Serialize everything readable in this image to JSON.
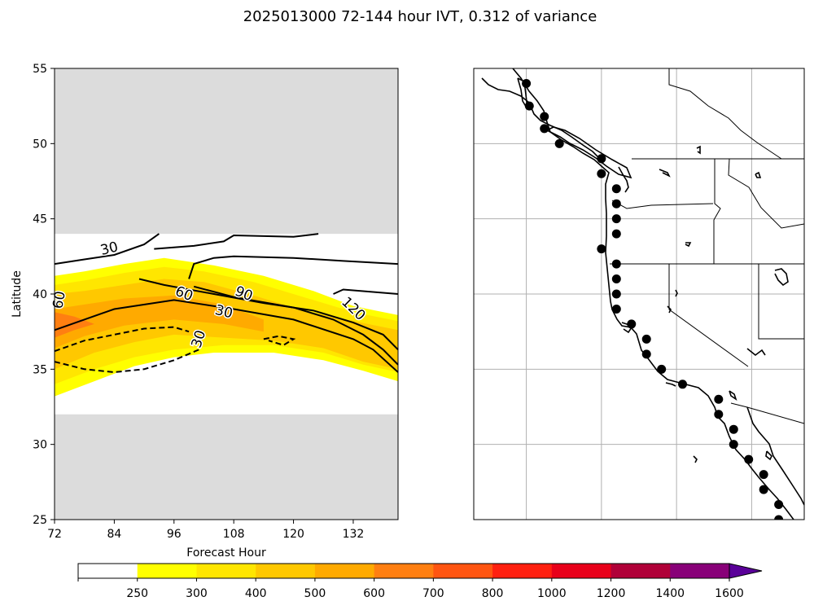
{
  "title": "2025013000 72-144 hour IVT, 0.312 of variance",
  "chart_data": [
    {
      "type": "contour",
      "xlabel": "Forecast Hour",
      "ylabel": "Latitude",
      "xlim": [
        72,
        141
      ],
      "ylim": [
        25,
        55
      ],
      "xticks": [
        72,
        84,
        96,
        108,
        120,
        132
      ],
      "yticks": [
        25,
        30,
        35,
        40,
        45,
        50,
        55
      ],
      "masked_bands": [
        [
          25,
          32
        ],
        [
          44,
          55
        ]
      ],
      "filled_contours": [
        {
          "level": "250-300",
          "color": "#ffff00",
          "outline": [
            [
              72,
              33.2
            ],
            [
              80,
              34.2
            ],
            [
              88,
              35.2
            ],
            [
              96,
              35.8
            ],
            [
              104,
              36.1
            ],
            [
              116,
              36.1
            ],
            [
              126,
              35.6
            ],
            [
              134,
              34.9
            ],
            [
              141,
              34.2
            ],
            [
              141,
              38.6
            ],
            [
              132,
              39.2
            ],
            [
              124,
              40.2
            ],
            [
              114,
              41.2
            ],
            [
              104,
              41.9
            ],
            [
              94,
              42.4
            ],
            [
              86,
              42.0
            ],
            [
              78,
              41.5
            ],
            [
              72,
              41.2
            ]
          ]
        },
        {
          "level": "300-400",
          "color": "#ffe600",
          "outline": [
            [
              72,
              34.0
            ],
            [
              80,
              35.0
            ],
            [
              88,
              35.8
            ],
            [
              96,
              36.3
            ],
            [
              106,
              36.6
            ],
            [
              116,
              36.6
            ],
            [
              126,
              36.1
            ],
            [
              134,
              35.3
            ],
            [
              141,
              34.8
            ],
            [
              141,
              38.2
            ],
            [
              132,
              38.8
            ],
            [
              122,
              39.8
            ],
            [
              112,
              40.8
            ],
            [
              102,
              41.5
            ],
            [
              94,
              41.8
            ],
            [
              86,
              41.4
            ],
            [
              78,
              40.9
            ],
            [
              72,
              40.6
            ]
          ]
        },
        {
          "level": "400-500",
          "color": "#ffc800",
          "outline": [
            [
              72,
              35.0
            ],
            [
              80,
              36.1
            ],
            [
              88,
              36.8
            ],
            [
              96,
              37.3
            ],
            [
              106,
              37.1
            ],
            [
              116,
              36.9
            ],
            [
              126,
              36.4
            ],
            [
              134,
              35.5
            ],
            [
              141,
              35.0
            ],
            [
              141,
              37.6
            ],
            [
              132,
              38.2
            ],
            [
              122,
              38.9
            ],
            [
              112,
              39.9
            ],
            [
              102,
              40.8
            ],
            [
              94,
              41.0
            ],
            [
              86,
              40.6
            ],
            [
              78,
              40.2
            ],
            [
              72,
              40.0
            ]
          ]
        },
        {
          "level": "500-600",
          "color": "#ffaa00",
          "outline": [
            [
              72,
              36.4
            ],
            [
              78,
              37.2
            ],
            [
              86,
              37.9
            ],
            [
              96,
              38.3
            ],
            [
              106,
              38.0
            ],
            [
              114,
              37.5
            ],
            [
              114,
              38.3
            ],
            [
              106,
              39.3
            ],
            [
              96,
              39.9
            ],
            [
              86,
              39.7
            ],
            [
              78,
              39.3
            ],
            [
              72,
              39.0
            ]
          ]
        },
        {
          "level": "600-700",
          "color": "#ff7f11",
          "outline": [
            [
              72,
              37.1
            ],
            [
              76,
              37.6
            ],
            [
              80,
              38.0
            ],
            [
              76,
              38.5
            ],
            [
              72,
              38.8
            ]
          ]
        }
      ],
      "contour_lines": [
        {
          "label": "30",
          "style": "solid",
          "points": [
            [
              72,
              42.0
            ],
            [
              78,
              42.3
            ],
            [
              84,
              42.6
            ],
            [
              90,
              43.3
            ],
            [
              93,
              44.0
            ]
          ]
        },
        {
          "label": "30",
          "style": "solid",
          "points": [
            [
              99,
              41.0
            ],
            [
              100,
              42.0
            ],
            [
              104,
              42.4
            ],
            [
              108,
              42.5
            ],
            [
              120,
              42.4
            ],
            [
              130,
              42.2
            ],
            [
              141,
              42.0
            ]
          ]
        },
        {
          "label": "30",
          "style": "solid",
          "points": [
            [
              92,
              43.0
            ],
            [
              100,
              43.2
            ],
            [
              106,
              43.5
            ],
            [
              108,
              43.9
            ],
            [
              120,
              43.8
            ],
            [
              125,
              44.0
            ]
          ]
        },
        {
          "label": "60",
          "style": "solid",
          "points": [
            [
              72,
              37.6
            ],
            [
              84,
              39.0
            ],
            [
              96,
              39.6
            ],
            [
              108,
              39.0
            ],
            [
              120,
              38.3
            ],
            [
              132,
              37.0
            ],
            [
              136,
              36.3
            ],
            [
              141,
              34.8
            ]
          ]
        },
        {
          "label": "90",
          "style": "solid",
          "points": [
            [
              89,
              41.0
            ],
            [
              94,
              40.6
            ],
            [
              104,
              40.0
            ],
            [
              114,
              39.4
            ],
            [
              124,
              38.9
            ],
            [
              132,
              38.1
            ],
            [
              138,
              37.3
            ],
            [
              141,
              36.3
            ]
          ]
        },
        {
          "label": "90",
          "style": "solid",
          "points": [
            [
              100,
              40.5
            ],
            [
              108,
              39.8
            ],
            [
              120,
              39.1
            ],
            [
              128,
              38.3
            ],
            [
              134,
              37.3
            ],
            [
              138,
              36.3
            ],
            [
              141,
              35.3
            ]
          ]
        },
        {
          "label": "120",
          "style": "solid",
          "points": [
            [
              128,
              40.0
            ],
            [
              130,
              40.3
            ],
            [
              141,
              40.0
            ]
          ]
        },
        {
          "label": "30",
          "style": "dashed",
          "points": [
            [
              72,
              36.2
            ],
            [
              78,
              36.9
            ],
            [
              84,
              37.3
            ],
            [
              90,
              37.7
            ],
            [
              96,
              37.8
            ],
            [
              99,
              37.5
            ]
          ]
        },
        {
          "label": "30",
          "style": "dashed",
          "points": [
            [
              72,
              35.5
            ],
            [
              78,
              35.0
            ],
            [
              84,
              34.8
            ],
            [
              90,
              35.0
            ],
            [
              96,
              35.6
            ],
            [
              101,
              36.3
            ]
          ]
        },
        {
          "label": "",
          "style": "dashed",
          "points": [
            [
              114,
              37.0
            ],
            [
              117,
              37.2
            ],
            [
              120,
              37.0
            ],
            [
              118,
              36.6
            ],
            [
              115,
              36.9
            ]
          ]
        }
      ],
      "contour_labels": [
        {
          "text": "30",
          "x": 83,
          "y": 43.0,
          "rotate": -14
        },
        {
          "text": "60",
          "x": 73,
          "y": 39.6,
          "rotate": -80
        },
        {
          "text": "60",
          "x": 98,
          "y": 40.0,
          "rotate": 22
        },
        {
          "text": "90",
          "x": 110,
          "y": 40.0,
          "rotate": 22
        },
        {
          "text": "30",
          "x": 106,
          "y": 38.8,
          "rotate": 14
        },
        {
          "text": "30",
          "x": 101,
          "y": 37.0,
          "rotate": -72
        },
        {
          "text": "120",
          "x": 132,
          "y": 39.0,
          "rotate": 44
        }
      ]
    },
    {
      "type": "map",
      "description_keys": [
        "west-coast",
        "stations"
      ],
      "lon_range": [
        -133.5,
        -111.5
      ],
      "lat_range": [
        25,
        55
      ],
      "gridlines_lon": [
        -130,
        -125,
        -120,
        -115
      ],
      "gridlines_lat": [
        30,
        35,
        40,
        45,
        50
      ],
      "stations": [
        [
          -130.0,
          54.0
        ],
        [
          -129.8,
          52.5
        ],
        [
          -128.8,
          51.8
        ],
        [
          -128.8,
          51.0
        ],
        [
          -127.8,
          50.0
        ],
        [
          -125.0,
          49.0
        ],
        [
          -125.0,
          48.0
        ],
        [
          -124.0,
          47.0
        ],
        [
          -124.0,
          46.0
        ],
        [
          -124.0,
          45.0
        ],
        [
          -124.0,
          44.0
        ],
        [
          -125.0,
          43.0
        ],
        [
          -124.0,
          42.0
        ],
        [
          -124.0,
          41.0
        ],
        [
          -124.0,
          40.0
        ],
        [
          -124.0,
          39.0
        ],
        [
          -123.0,
          38.0
        ],
        [
          -122.0,
          37.0
        ],
        [
          -122.0,
          36.0
        ],
        [
          -121.0,
          35.0
        ],
        [
          -119.6,
          34.0
        ],
        [
          -117.2,
          33.0
        ],
        [
          -117.2,
          32.0
        ],
        [
          -116.2,
          31.0
        ],
        [
          -116.2,
          30.0
        ],
        [
          -115.2,
          29.0
        ],
        [
          -114.2,
          28.0
        ],
        [
          -114.2,
          27.0
        ],
        [
          -113.2,
          26.0
        ],
        [
          -113.2,
          25.0
        ]
      ]
    }
  ],
  "colorbar": {
    "ticks": [
      "250",
      "300",
      "400",
      "500",
      "600",
      "700",
      "800",
      "1000",
      "1200",
      "1400",
      "1600"
    ],
    "colors": [
      "#ffffff",
      "#ffff00",
      "#ffe600",
      "#ffc800",
      "#ffaa00",
      "#ff7f11",
      "#ff5511",
      "#ff2010",
      "#e8001a",
      "#b00038",
      "#880078",
      "#5a0099"
    ],
    "extend": "max"
  }
}
